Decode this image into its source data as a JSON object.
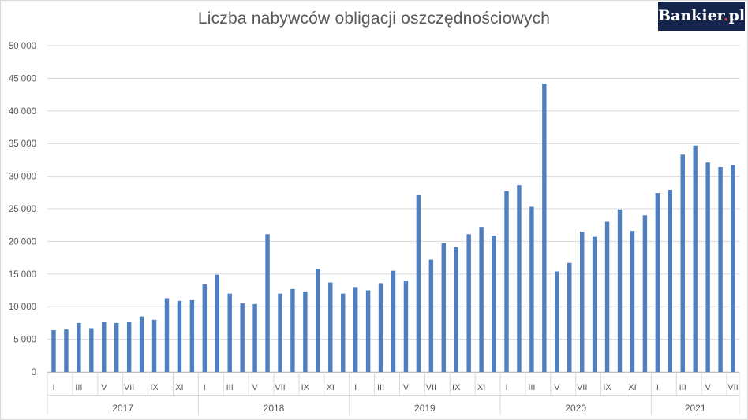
{
  "brand": {
    "name": "Bankier",
    "dot": ".",
    "tld": "pl"
  },
  "chart_data": {
    "type": "bar",
    "title": "Liczba nabywców obligacji oszczędnościowych",
    "ylim": [
      0,
      50000
    ],
    "yticks": [
      "0",
      "5 000",
      "10 000",
      "15 000",
      "20 000",
      "25 000",
      "30 000",
      "35 000",
      "40 000",
      "45 000",
      "50 000"
    ],
    "grid": true,
    "color": "#4f7fbf",
    "years": [
      {
        "label": "2017",
        "months": 12
      },
      {
        "label": "2018",
        "months": 12
      },
      {
        "label": "2019",
        "months": 12
      },
      {
        "label": "2020",
        "months": 12
      },
      {
        "label": "2021",
        "months": 7
      }
    ],
    "month_labels": [
      "I",
      "",
      "III",
      "",
      "V",
      "",
      "VII",
      "",
      "IX",
      "",
      "XI",
      ""
    ],
    "values": [
      6400,
      6500,
      7500,
      6700,
      7700,
      7500,
      7700,
      8500,
      8000,
      11300,
      10900,
      11000,
      13400,
      14900,
      12000,
      10500,
      10400,
      21100,
      12000,
      12700,
      12300,
      15800,
      13700,
      12000,
      13000,
      12500,
      13600,
      15500,
      14000,
      27100,
      17200,
      19700,
      19100,
      21100,
      22200,
      20900,
      27700,
      28600,
      25300,
      44200,
      15400,
      16700,
      21500,
      20700,
      23000,
      24900,
      21600,
      24000,
      27400,
      27900,
      33300,
      34700,
      32100,
      31400,
      31700
    ]
  }
}
